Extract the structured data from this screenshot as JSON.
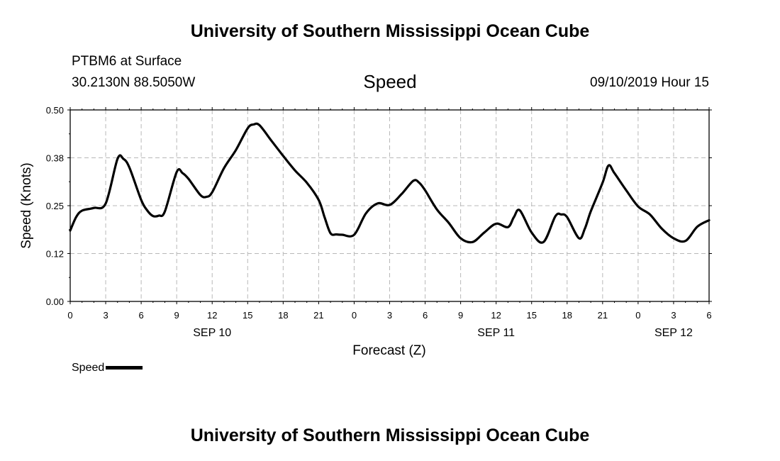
{
  "header": {
    "title": "University of Southern Mississippi Ocean Cube",
    "station": "PTBM6 at Surface",
    "coords": "30.2130N 88.5050W",
    "timestamp": "09/10/2019 Hour 15"
  },
  "footer": {
    "title": "University of Southern Mississippi Ocean Cube"
  },
  "legend": {
    "label": "Speed",
    "color": "#000000"
  },
  "chart_data": {
    "type": "line",
    "title": "Speed",
    "xlabel": "Forecast (Z)",
    "ylabel": "Speed (Knots)",
    "ylim": [
      0,
      0.5
    ],
    "xlim": [
      0,
      54
    ],
    "yticks": [
      "0.00",
      "0.12",
      "0.25",
      "0.38",
      "0.50"
    ],
    "ytick_values": [
      0,
      0.125,
      0.25,
      0.375,
      0.5
    ],
    "xtick_hours": [
      0,
      3,
      6,
      9,
      12,
      15,
      18,
      21,
      24,
      27,
      30,
      33,
      36,
      39,
      42,
      45,
      48,
      51,
      54
    ],
    "xtick_labels": [
      "0",
      "3",
      "6",
      "9",
      "12",
      "15",
      "18",
      "21",
      "0",
      "3",
      "6",
      "9",
      "12",
      "15",
      "18",
      "21",
      "0",
      "3",
      "6"
    ],
    "day_labels": [
      {
        "hour": 12,
        "label": "SEP 10"
      },
      {
        "hour": 36,
        "label": "SEP 11"
      },
      {
        "hour": 51,
        "label": "SEP 12"
      }
    ],
    "series": [
      {
        "name": "Speed",
        "color": "#000000",
        "x": [
          0,
          0.5,
          1,
          2,
          3,
          4,
          4.5,
          5,
          6,
          6.5,
          7,
          7.5,
          8,
          9,
          9.5,
          10,
          11,
          11.5,
          12,
          13,
          14,
          15,
          15.5,
          16,
          17,
          18,
          19,
          20,
          21,
          21.5,
          22,
          22.5,
          23,
          24,
          25,
          26,
          27,
          28,
          29,
          29.5,
          30,
          31,
          32,
          33,
          34,
          35,
          36,
          37,
          37.5,
          38,
          39,
          40,
          41,
          41.5,
          42,
          43,
          43.5,
          44,
          45,
          45.5,
          46,
          47,
          48,
          49,
          50,
          51,
          52,
          53,
          54
        ],
        "values": [
          0.185,
          0.22,
          0.237,
          0.244,
          0.256,
          0.372,
          0.372,
          0.35,
          0.265,
          0.238,
          0.223,
          0.224,
          0.235,
          0.338,
          0.335,
          0.32,
          0.278,
          0.273,
          0.285,
          0.348,
          0.395,
          0.452,
          0.462,
          0.46,
          0.42,
          0.38,
          0.342,
          0.31,
          0.265,
          0.22,
          0.178,
          0.175,
          0.174,
          0.174,
          0.23,
          0.256,
          0.252,
          0.28,
          0.315,
          0.31,
          0.29,
          0.24,
          0.205,
          0.165,
          0.155,
          0.18,
          0.203,
          0.194,
          0.22,
          0.238,
          0.18,
          0.155,
          0.222,
          0.227,
          0.22,
          0.165,
          0.19,
          0.235,
          0.31,
          0.355,
          0.335,
          0.29,
          0.248,
          0.227,
          0.19,
          0.165,
          0.158,
          0.195,
          0.212
        ]
      }
    ]
  }
}
